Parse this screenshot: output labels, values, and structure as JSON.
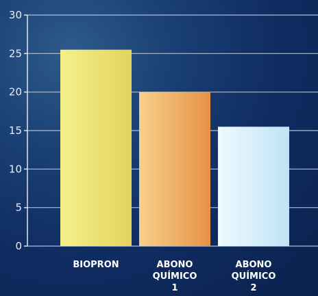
{
  "chart_data": {
    "type": "bar",
    "categories": [
      [
        "BIOPRON"
      ],
      [
        "ABONO",
        "QUÍMICO",
        "1"
      ],
      [
        "ABONO",
        "QUÍMICO",
        "2"
      ]
    ],
    "values": [
      25.5,
      20,
      15.5
    ],
    "bar_colors": [
      [
        "#f4f08c",
        "#e3d45c"
      ],
      [
        "#f6d08a",
        "#e79147"
      ],
      [
        "#eefaff",
        "#bfe3f6"
      ]
    ],
    "ylim": [
      0,
      30
    ],
    "yticks": [
      "0",
      "5",
      "10",
      "15",
      "20",
      "25",
      "30"
    ],
    "grid": true,
    "title": "",
    "xlabel": "",
    "ylabel": ""
  }
}
